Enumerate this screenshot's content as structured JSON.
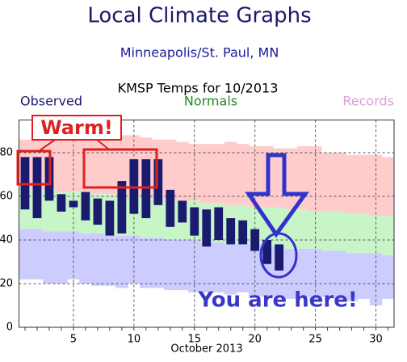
{
  "header": {
    "title": "Local Climate Graphs",
    "subtitle": "Minneapolis/St. Paul, MN"
  },
  "chart_data": {
    "type": "range-bar",
    "title": "KMSP Temps for 10/2013",
    "x_label": "October 2013",
    "x": [
      1,
      2,
      3,
      4,
      5,
      6,
      7,
      8,
      9,
      10,
      11,
      12,
      13,
      14,
      15,
      16,
      17,
      18,
      19,
      20,
      21,
      22,
      23,
      24,
      25,
      26,
      27,
      28,
      29,
      30,
      31
    ],
    "xlim": [
      0.5,
      31.5
    ],
    "xticks": [
      5,
      10,
      15,
      20,
      25,
      30
    ],
    "ylim": [
      0,
      95
    ],
    "yticks": [
      0,
      20,
      40,
      60,
      80
    ],
    "grid": true,
    "series": [
      {
        "name": "Observed",
        "color": "#1a1a6e",
        "high": [
          78,
          78,
          78,
          61,
          58,
          62,
          59,
          58,
          67,
          77,
          77,
          77,
          63,
          58,
          55,
          54,
          55,
          50,
          49,
          45,
          40,
          38,
          null,
          null,
          null,
          null,
          null,
          null,
          null,
          null,
          null
        ],
        "low": [
          54,
          50,
          58,
          53,
          55,
          49,
          47,
          42,
          43,
          52,
          50,
          56,
          46,
          48,
          42,
          37,
          40,
          38,
          38,
          35,
          29,
          26,
          null,
          null,
          null,
          null,
          null,
          null,
          null,
          null,
          null
        ]
      },
      {
        "name": "Normals",
        "color": "#1e8c1e",
        "fill": "#c8f5c8",
        "high": [
          64,
          63,
          63,
          62,
          62,
          62,
          61,
          61,
          60,
          60,
          59,
          59,
          58,
          58,
          58,
          57,
          57,
          56,
          56,
          55,
          55,
          55,
          54,
          54,
          53,
          53,
          53,
          52,
          52,
          51,
          51
        ],
        "low": [
          45,
          45,
          44,
          44,
          44,
          43,
          43,
          42,
          42,
          42,
          41,
          41,
          40,
          40,
          40,
          39,
          39,
          38,
          38,
          38,
          37,
          37,
          36,
          36,
          36,
          35,
          35,
          34,
          34,
          34,
          33
        ]
      },
      {
        "name": "Records",
        "color": "#d8a0d8",
        "fills": [
          "#ffcccc",
          "#ccccff"
        ],
        "high": [
          86,
          86,
          88,
          88,
          87,
          87,
          86,
          88,
          88,
          88,
          87,
          86,
          86,
          85,
          84,
          84,
          84,
          85,
          84,
          83,
          83,
          82,
          82,
          83,
          83,
          80,
          80,
          79,
          79,
          79,
          78
        ],
        "low": [
          22,
          22,
          20,
          20,
          22,
          20,
          19,
          19,
          18,
          20,
          18,
          18,
          17,
          17,
          16,
          16,
          16,
          15,
          16,
          14,
          14,
          14,
          13,
          14,
          12,
          14,
          13,
          12,
          13,
          10,
          13
        ]
      }
    ],
    "annotations": {
      "warm": "Warm!",
      "here": "You are here!"
    }
  }
}
